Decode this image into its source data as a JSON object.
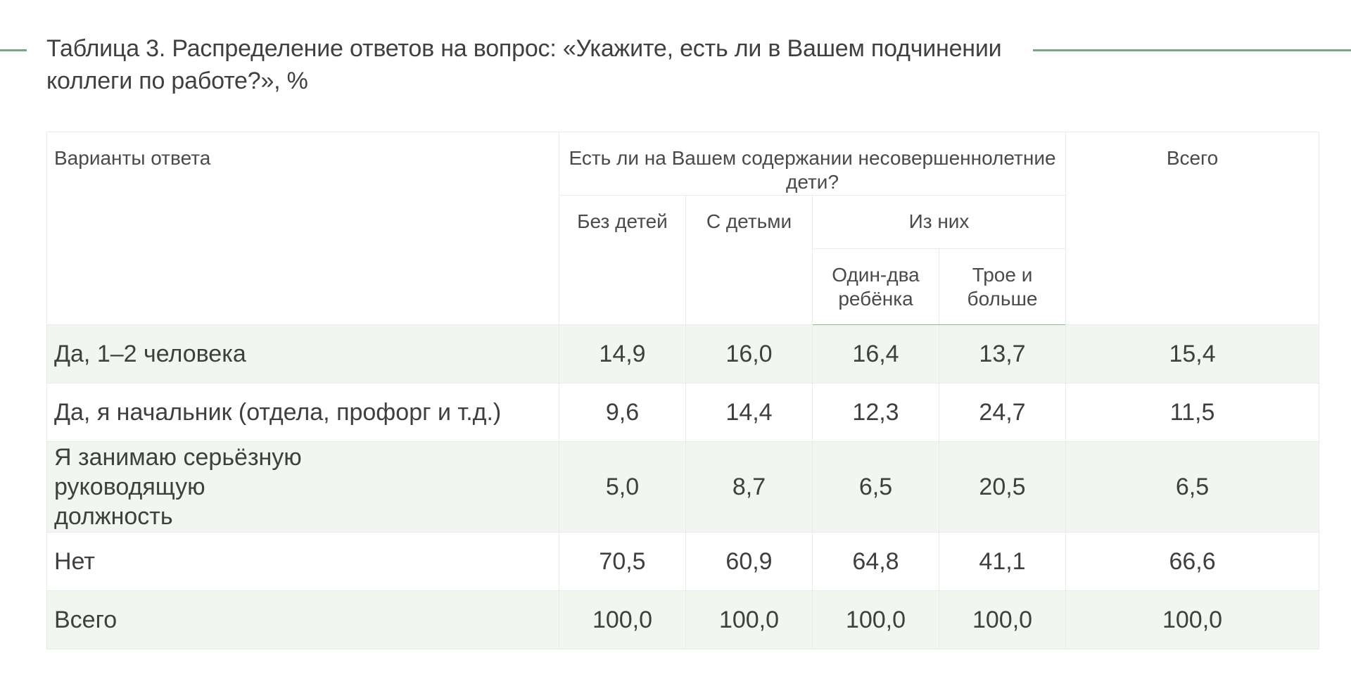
{
  "title": "Таблица 3. Распределение ответов на вопрос: «Укажите, есть ли в Вашем подчинении коллеги по работе?», %",
  "accent_color": "#7aa57f",
  "header": {
    "answer_options": "Варианты ответа",
    "group_question": "Есть ли на Вашем содержании несовершеннолетние дети?",
    "total": "Всего",
    "without_children": "Без детей",
    "with_children": "С детьми",
    "of_them": "Из них",
    "one_two": "Один-два ребёнка",
    "three_plus": "Трое и больше"
  },
  "rows": [
    {
      "label": "Да, 1–2 человека",
      "values": [
        "14,9",
        "16,0",
        "16,4",
        "13,7",
        "15,4"
      ]
    },
    {
      "label": "Да, я начальник (отдела, профорг и т.д.)",
      "values": [
        "9,6",
        "14,4",
        "12,3",
        "24,7",
        "11,5"
      ]
    },
    {
      "label": "Я занимаю серьёзную руководящую должность",
      "values": [
        "5,0",
        "8,7",
        "6,5",
        "20,5",
        "6,5"
      ]
    },
    {
      "label": "Нет",
      "values": [
        "70,5",
        "60,9",
        "64,8",
        "41,1",
        "66,6"
      ]
    },
    {
      "label": "Всего",
      "values": [
        "100,0",
        "100,0",
        "100,0",
        "100,0",
        "100,0"
      ]
    }
  ]
}
